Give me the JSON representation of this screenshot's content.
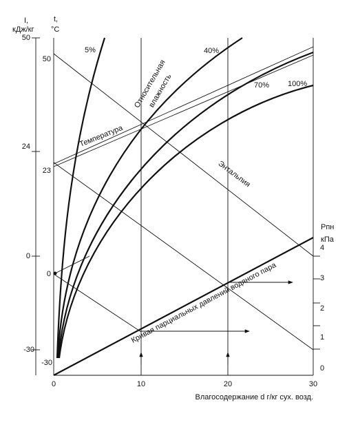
{
  "axes": {
    "i_label": [
      "I,",
      "кДж/кг"
    ],
    "t_label": [
      "t,",
      "°C"
    ],
    "p_label": [
      "Рпн",
      "кПа"
    ],
    "i_ticks": [
      "50",
      "24",
      "0",
      "-30"
    ],
    "t_ticks": [
      "50",
      "23",
      "0",
      "-30"
    ],
    "p_ticks": [
      "4",
      "3",
      "2",
      "1",
      "0"
    ],
    "d_ticks": [
      "0",
      "10",
      "20",
      "30"
    ],
    "d_label": "Влагосодержание d г/кг сух. возд."
  },
  "curves": {
    "humidity": [
      "5%",
      "40%",
      "70%",
      "100%"
    ]
  },
  "annotations": {
    "humidity": [
      "Относительная",
      "влажность"
    ],
    "temperature": "Температура",
    "enthalpy": "Энтальпия",
    "pressure_curve": "Кривая парциальных давлений водяного пара"
  }
}
